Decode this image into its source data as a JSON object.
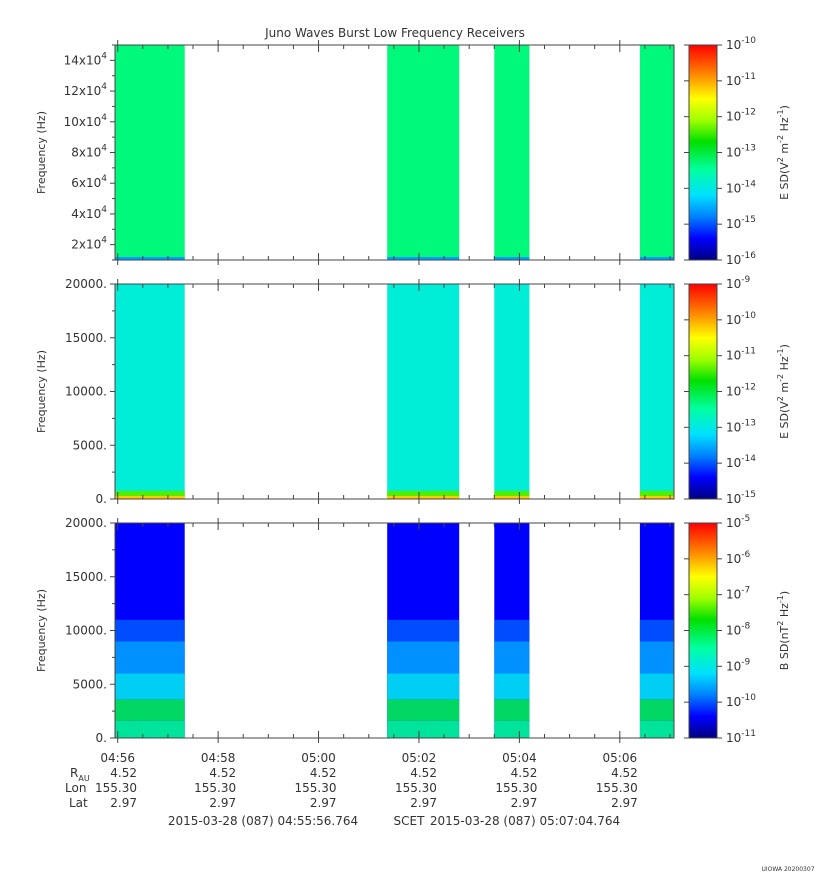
{
  "title": "Juno Waves Burst Low Frequency Receivers",
  "footer": {
    "start": "2015-03-28 (087) 04:55:56.764",
    "scet": "SCET",
    "end": "2015-03-28 (087) 05:07:04.764",
    "credit": "UIOWA 20200307"
  },
  "chart_data": [
    {
      "type": "heatmap",
      "panel": "top",
      "ylabel": "Frequency (Hz)",
      "yticks": [
        {
          "v": 20000,
          "mant": "2x10",
          "exp": "4"
        },
        {
          "v": 40000,
          "mant": "4x10",
          "exp": "4"
        },
        {
          "v": 60000,
          "mant": "6x10",
          "exp": "4"
        },
        {
          "v": 80000,
          "mant": "8x10",
          "exp": "4"
        },
        {
          "v": 100000,
          "mant": "10x10",
          "exp": "4"
        },
        {
          "v": 120000,
          "mant": "12x10",
          "exp": "4"
        },
        {
          "v": 140000,
          "mant": "14x10",
          "exp": "4"
        }
      ],
      "ylim": [
        10000,
        150000
      ],
      "colorbar_label": "E SD(V^2 m^-2 Hz^-1)",
      "colorbar_label_parts": [
        "E SD(V",
        "2",
        " m",
        "-2",
        " Hz",
        "-1",
        ")"
      ],
      "cbar_exps": [
        "-10",
        "-11",
        "-12",
        "-13",
        "-14",
        "-15",
        "-16"
      ],
      "color_log_range": [
        -16,
        -10
      ],
      "blocks_level": [
        -13.3,
        -13.3,
        -13.3,
        -13.3
      ],
      "bottom_level": -14.6
    },
    {
      "type": "heatmap",
      "panel": "middle",
      "ylabel": "Frequency (Hz)",
      "yticks": [
        {
          "v": 0,
          "label": "0."
        },
        {
          "v": 5000,
          "label": "5000."
        },
        {
          "v": 10000,
          "label": "10000."
        },
        {
          "v": 15000,
          "label": "15000."
        },
        {
          "v": 20000,
          "label": "20000."
        }
      ],
      "ylim": [
        0,
        20000
      ],
      "colorbar_label": "E SD(V^2 m^-2 Hz^-1)",
      "colorbar_label_parts": [
        "E SD(V",
        "2",
        " m",
        "-2",
        " Hz",
        "-1",
        ")"
      ],
      "cbar_exps": [
        "-9",
        "-10",
        "-11",
        "-12",
        "-13",
        "-14",
        "-15"
      ],
      "color_log_range": [
        -15,
        -9
      ],
      "blocks_level": [
        -12.9,
        -12.9,
        -12.9,
        -12.9
      ],
      "bottom_level": -11.4
    },
    {
      "type": "heatmap",
      "panel": "bottom",
      "ylabel": "Frequency (Hz)",
      "yticks": [
        {
          "v": 0,
          "label": "0."
        },
        {
          "v": 5000,
          "label": "5000."
        },
        {
          "v": 10000,
          "label": "10000."
        },
        {
          "v": 15000,
          "label": "15000."
        },
        {
          "v": 20000,
          "label": "20000."
        }
      ],
      "ylim": [
        0,
        20000
      ],
      "colorbar_label": "B SD(nT^2 Hz^-1)",
      "colorbar_label_parts": [
        "B SD(nT",
        "2",
        " Hz",
        "-1",
        ")"
      ],
      "cbar_exps": [
        "-5",
        "-6",
        "-7",
        "-8",
        "-9",
        "-10",
        "-11"
      ],
      "color_log_range": [
        -11,
        -5
      ],
      "blocks_level": [
        -10.4,
        -10.4,
        -10.4,
        -10.4
      ],
      "bottom_level": -8.4
    }
  ],
  "x_axis": {
    "xlim": [
      "04:55:56.764",
      "05:07:04.764"
    ],
    "ticks": [
      "04:56",
      "04:58",
      "05:00",
      "05:02",
      "05:04",
      "05:06"
    ],
    "rows": [
      {
        "label": "R",
        "sub": "AU",
        "values": [
          "4.52",
          "4.52",
          "4.52",
          "4.52",
          "4.52",
          "4.52"
        ]
      },
      {
        "label": "Lon",
        "values": [
          "155.30",
          "155.30",
          "155.30",
          "155.30",
          "155.30",
          "155.30"
        ]
      },
      {
        "label": "Lat",
        "values": [
          "2.97",
          "2.97",
          "2.97",
          "2.97",
          "2.97",
          "2.97"
        ]
      }
    ]
  },
  "data_blocks": [
    {
      "start": "04:55:56.764",
      "end": "04:57:20"
    },
    {
      "start": "05:01:22",
      "end": "05:02:48"
    },
    {
      "start": "05:03:30",
      "end": "05:04:12"
    },
    {
      "start": "05:06:24",
      "end": "05:07:04.764"
    }
  ]
}
